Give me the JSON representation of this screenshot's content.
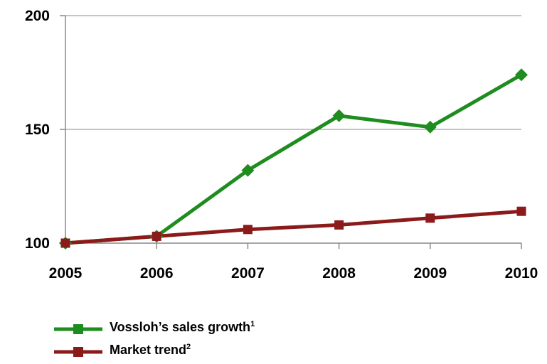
{
  "chart_data": {
    "type": "line",
    "x": [
      "2005",
      "2006",
      "2007",
      "2008",
      "2009",
      "2010"
    ],
    "series": [
      {
        "name": "Vossloh’s sales growth",
        "footnote": "1",
        "color": "#1e8c1e",
        "marker": "diamond",
        "values": [
          100,
          103,
          132,
          156,
          151,
          174
        ]
      },
      {
        "name": "Market trend",
        "footnote": "2",
        "color": "#8b1a1a",
        "marker": "square",
        "values": [
          100,
          103,
          106,
          108,
          111,
          114
        ]
      }
    ],
    "yticks": [
      "100",
      "150",
      "200"
    ],
    "ylim": [
      100,
      200
    ],
    "grid": "horizontal",
    "legend": "bottom-left"
  }
}
